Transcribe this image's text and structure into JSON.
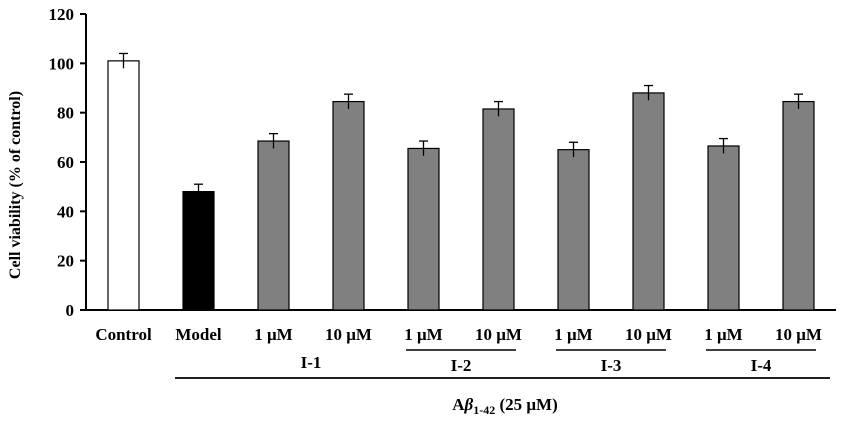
{
  "chart_data": {
    "type": "bar",
    "ylabel": "Cell viability (% of control)",
    "ylim": [
      0,
      120
    ],
    "yticks": [
      0,
      20,
      40,
      60,
      80,
      100,
      120
    ],
    "categories": [
      "Control",
      "Model",
      "1 μM",
      "10 μM",
      "1 μM",
      "10 μM",
      "1 μM",
      "10 μM",
      "1 μM",
      "10 μM"
    ],
    "values": [
      101,
      48,
      68.5,
      84.5,
      65.5,
      81.5,
      65,
      88,
      66.5,
      84.5
    ],
    "errors": [
      3,
      3,
      3,
      3,
      3,
      3,
      3,
      3,
      3,
      3
    ],
    "bar_colors": [
      "#ffffff",
      "#000000",
      "#808080",
      "#808080",
      "#808080",
      "#808080",
      "#808080",
      "#808080",
      "#808080",
      "#808080"
    ],
    "groups": [
      {
        "label": "I-1",
        "start": 2,
        "end": 3
      },
      {
        "label": "I-2",
        "start": 4,
        "end": 5
      },
      {
        "label": "I-3",
        "start": 6,
        "end": 7
      },
      {
        "label": "I-4",
        "start": 8,
        "end": 9
      }
    ],
    "treatment_group": {
      "label_main": "A",
      "label_beta": "β",
      "label_sub": "1-42",
      "label_conc": " (25 μM)",
      "start": 1,
      "end": 9
    },
    "grid": false,
    "legend": "none"
  }
}
